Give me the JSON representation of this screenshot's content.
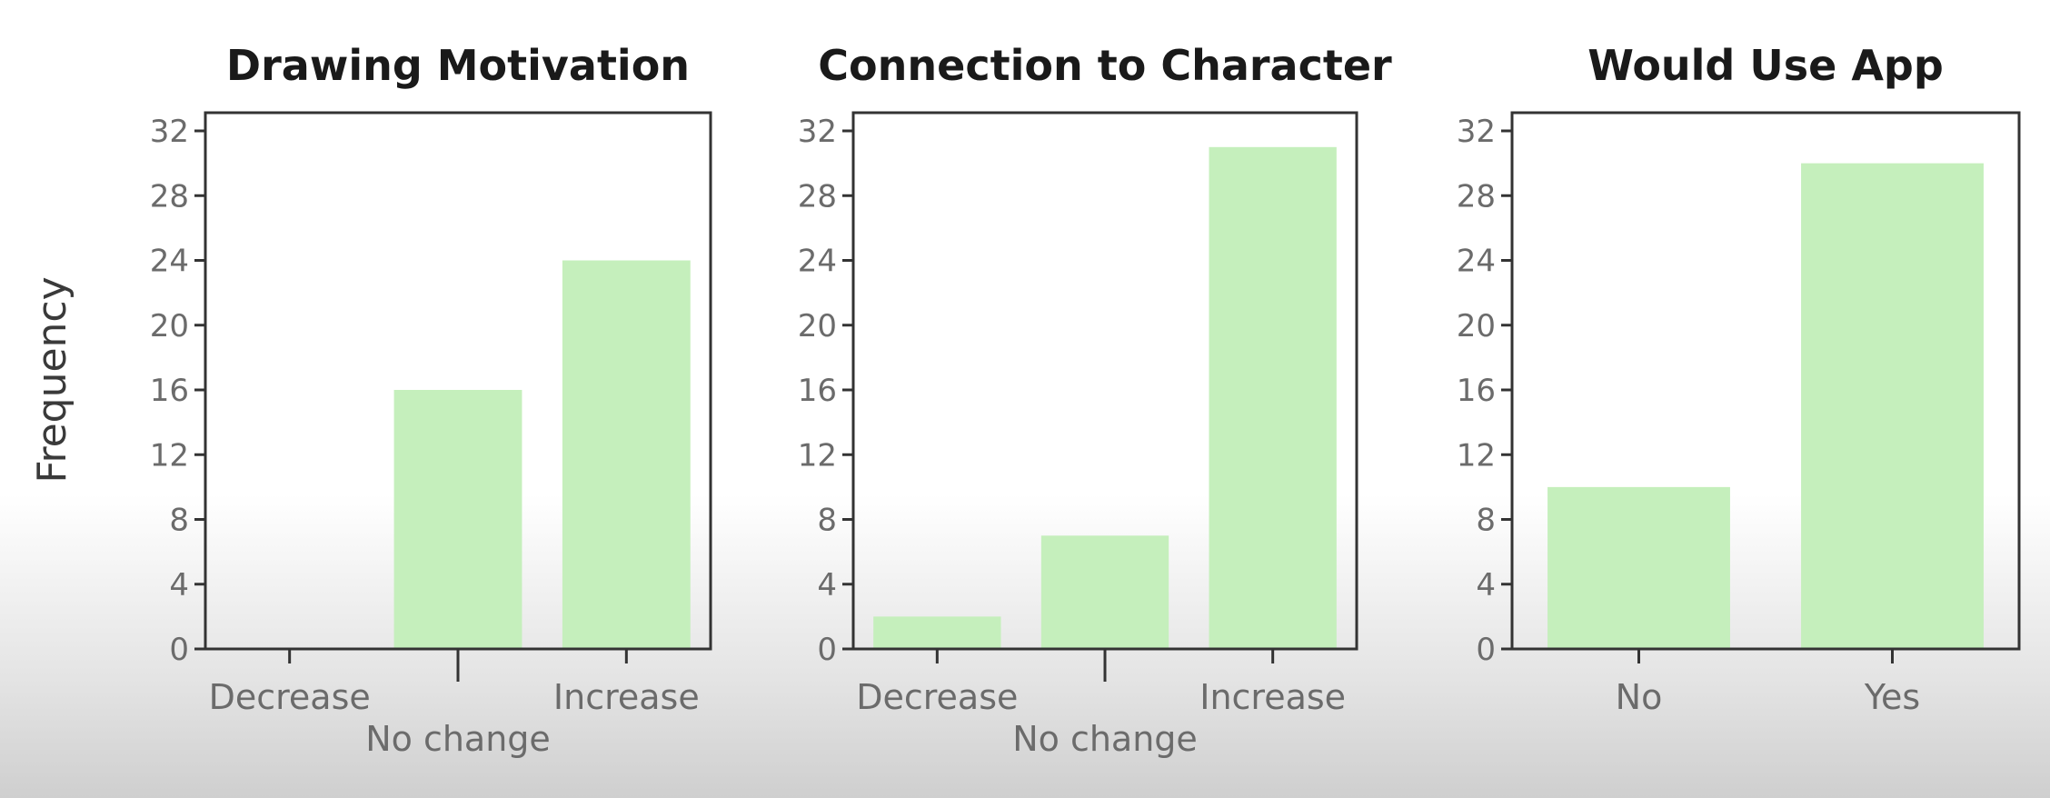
{
  "chart_data": [
    {
      "type": "bar",
      "title": "Drawing Motivation",
      "ylabel": "Frequency",
      "categories": [
        "Decrease",
        "No change",
        "Increase"
      ],
      "values": [
        0,
        16,
        24
      ],
      "ylim": [
        0,
        32
      ],
      "yticks": [
        "0",
        "4",
        "8",
        "12",
        "16",
        "20",
        "24",
        "28",
        "32"
      ],
      "grid": false,
      "bar_color": "#c5efbc"
    },
    {
      "type": "bar",
      "title": "Connection to Character",
      "categories": [
        "Decrease",
        "No change",
        "Increase"
      ],
      "values": [
        2,
        7,
        31
      ],
      "ylim": [
        0,
        32
      ],
      "yticks": [
        "0",
        "4",
        "8",
        "12",
        "16",
        "20",
        "24",
        "28",
        "32"
      ],
      "grid": false,
      "bar_color": "#c5efbc"
    },
    {
      "type": "bar",
      "title": "Would Use App",
      "categories": [
        "No",
        "Yes"
      ],
      "values": [
        10,
        30
      ],
      "ylim": [
        0,
        32
      ],
      "yticks": [
        "0",
        "4",
        "8",
        "12",
        "16",
        "20",
        "24",
        "28",
        "32"
      ],
      "grid": false,
      "bar_color": "#c5efbc"
    }
  ],
  "colors": {
    "axis": "#333333",
    "tick_text": "#6b6b6b",
    "title_text": "#1a1a1a",
    "bar": "#c5efbc"
  }
}
